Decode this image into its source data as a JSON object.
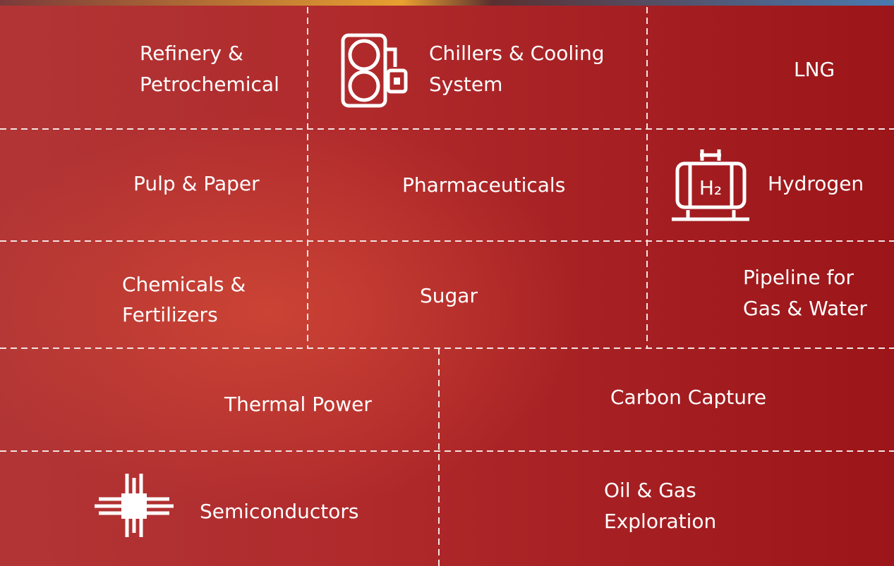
{
  "cells": [
    {
      "lines": [
        "Refinery &",
        "Petrochemical"
      ]
    },
    {
      "lines": [
        "Chillers & Cooling",
        "System"
      ]
    },
    {
      "lines": [
        "LNG"
      ]
    },
    {
      "lines": [
        "Pulp & Paper"
      ]
    },
    {
      "lines": [
        "Pharmaceuticals"
      ]
    },
    {
      "lines": [
        "Hydrogen"
      ]
    },
    {
      "lines": [
        "Chemicals &",
        "Fertilizers"
      ]
    },
    {
      "lines": [
        "Sugar"
      ]
    },
    {
      "lines": [
        "Pipeline for",
        "Gas & Water"
      ]
    },
    {
      "lines": [
        "Thermal Power"
      ]
    },
    {
      "lines": [
        "Carbon Capture"
      ]
    },
    {
      "lines": [
        "Semiconductors"
      ]
    },
    {
      "lines": [
        "Oil & Gas",
        "Exploration"
      ]
    }
  ]
}
